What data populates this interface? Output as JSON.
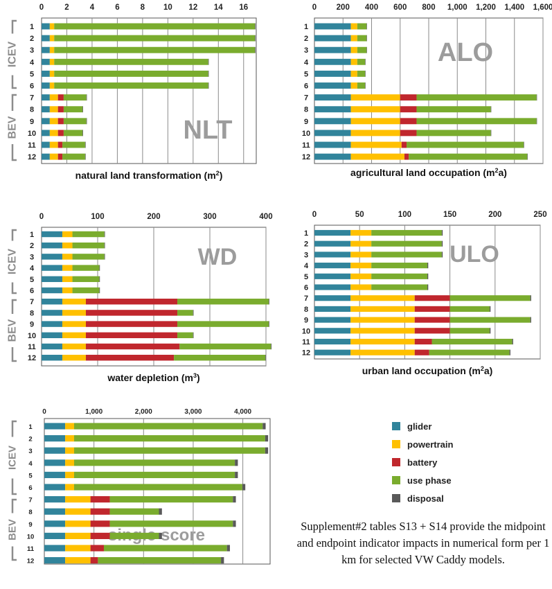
{
  "colors": {
    "glider": "#31849b",
    "powertrain": "#ffc000",
    "battery": "#c0272d",
    "use_phase": "#7aac2e",
    "disposal": "#595959",
    "watermark": "#9c9c9c",
    "bracket": "#8c8c8c"
  },
  "legend": {
    "items": [
      {
        "key": "glider",
        "label": "glider"
      },
      {
        "key": "powertrain",
        "label": "powertrain"
      },
      {
        "key": "battery",
        "label": "battery"
      },
      {
        "key": "use_phase",
        "label": "use phase"
      },
      {
        "key": "disposal",
        "label": "disposal"
      }
    ]
  },
  "caption": "Supplement#2 tables S13 + S14 provide the midpoint and endpoint indicator impacts in numerical form per 1 km for selected VW Caddy models.",
  "group_labels": {
    "icev": "ICEV",
    "bev": "BEV"
  },
  "chart_data": [
    {
      "id": "nlt",
      "type": "bar",
      "orientation": "horizontal",
      "stacked": true,
      "title": "NLT",
      "xlabel": "natural land transformation (m²)",
      "xlim": [
        0,
        17
      ],
      "ticks": [
        0,
        2,
        4,
        6,
        8,
        10,
        12,
        14,
        16
      ],
      "tick_labels": [
        "0",
        "2",
        "4",
        "6",
        "8",
        "10",
        "12",
        "14",
        "16"
      ],
      "categories": [
        "1",
        "2",
        "3",
        "4",
        "5",
        "6",
        "7",
        "8",
        "9",
        "10",
        "11",
        "12"
      ],
      "series": [
        {
          "name": "glider",
          "values": [
            0.65,
            0.65,
            0.65,
            0.65,
            0.65,
            0.65,
            0.65,
            0.65,
            0.65,
            0.65,
            0.65,
            0.65
          ]
        },
        {
          "name": "powertrain",
          "values": [
            0.35,
            0.35,
            0.35,
            0.35,
            0.35,
            0.35,
            0.65,
            0.65,
            0.65,
            0.65,
            0.65,
            0.65
          ]
        },
        {
          "name": "battery",
          "values": [
            0,
            0,
            0,
            0,
            0,
            0,
            0.45,
            0.45,
            0.45,
            0.45,
            0.35,
            0.35
          ]
        },
        {
          "name": "use_phase",
          "values": [
            15.9,
            15.9,
            15.9,
            12.2,
            12.2,
            12.2,
            1.8,
            1.5,
            1.8,
            1.5,
            1.8,
            1.8
          ]
        },
        {
          "name": "disposal",
          "values": [
            0.04,
            0.04,
            0.04,
            0.04,
            0.04,
            0.04,
            0.04,
            0.04,
            0.04,
            0.04,
            0.04,
            0.04
          ]
        }
      ]
    },
    {
      "id": "alo",
      "type": "bar",
      "orientation": "horizontal",
      "stacked": true,
      "title": "ALO",
      "xlabel": "agricultural land occupation (m²a)",
      "xlim": [
        0,
        1600
      ],
      "ticks": [
        0,
        200,
        400,
        600,
        800,
        1000,
        1200,
        1400,
        1600
      ],
      "tick_labels": [
        "0",
        "200",
        "400",
        "600",
        "800",
        "1,000",
        "1,200",
        "1,400",
        "1,600"
      ],
      "categories": [
        "1",
        "2",
        "3",
        "4",
        "5",
        "6",
        "7",
        "8",
        "9",
        "10",
        "11",
        "12"
      ],
      "series": [
        {
          "name": "glider",
          "values": [
            255,
            255,
            255,
            255,
            255,
            255,
            255,
            255,
            255,
            255,
            255,
            255
          ]
        },
        {
          "name": "powertrain",
          "values": [
            45,
            45,
            45,
            45,
            45,
            45,
            345,
            345,
            345,
            345,
            355,
            375
          ]
        },
        {
          "name": "battery",
          "values": [
            0,
            0,
            0,
            0,
            0,
            0,
            115,
            115,
            115,
            115,
            35,
            30
          ]
        },
        {
          "name": "use_phase",
          "values": [
            65,
            65,
            65,
            55,
            55,
            55,
            840,
            520,
            840,
            520,
            820,
            830
          ]
        },
        {
          "name": "disposal",
          "values": [
            3,
            3,
            3,
            3,
            3,
            3,
            3,
            3,
            3,
            3,
            3,
            3
          ]
        }
      ]
    },
    {
      "id": "wd",
      "type": "bar",
      "orientation": "horizontal",
      "stacked": true,
      "title": "WD",
      "xlabel": "water depletion (m³)",
      "xlim": [
        0,
        400
      ],
      "ticks": [
        0,
        100,
        200,
        300,
        400
      ],
      "tick_labels": [
        "0",
        "100",
        "200",
        "300",
        "400"
      ],
      "categories": [
        "1",
        "2",
        "3",
        "4",
        "5",
        "6",
        "7",
        "8",
        "9",
        "10",
        "11",
        "12"
      ],
      "series": [
        {
          "name": "glider",
          "values": [
            37,
            37,
            37,
            37,
            37,
            37,
            37,
            37,
            37,
            37,
            37,
            37
          ]
        },
        {
          "name": "powertrain",
          "values": [
            18,
            18,
            18,
            18,
            18,
            18,
            42,
            42,
            42,
            42,
            42,
            42
          ]
        },
        {
          "name": "battery",
          "values": [
            0,
            0,
            0,
            0,
            0,
            0,
            163,
            163,
            163,
            163,
            167,
            157
          ]
        },
        {
          "name": "use_phase",
          "values": [
            57,
            57,
            57,
            48,
            48,
            48,
            163,
            28,
            163,
            28,
            163,
            163
          ]
        },
        {
          "name": "disposal",
          "values": [
            1,
            1,
            1,
            1,
            1,
            1,
            1,
            1,
            1,
            1,
            1,
            1
          ]
        }
      ]
    },
    {
      "id": "ulo",
      "type": "bar",
      "orientation": "horizontal",
      "stacked": true,
      "title": "ULO",
      "xlabel": "urban land occupation (m²a)",
      "xlim": [
        0,
        250
      ],
      "ticks": [
        0,
        50,
        100,
        150,
        200,
        250
      ],
      "tick_labels": [
        "0",
        "50",
        "100",
        "150",
        "200",
        "250"
      ],
      "categories": [
        "1",
        "2",
        "3",
        "4",
        "5",
        "6",
        "7",
        "8",
        "9",
        "10",
        "11",
        "12"
      ],
      "series": [
        {
          "name": "glider",
          "values": [
            40,
            40,
            40,
            40,
            40,
            40,
            40,
            40,
            40,
            40,
            40,
            40
          ]
        },
        {
          "name": "powertrain",
          "values": [
            23,
            23,
            23,
            23,
            23,
            23,
            71,
            71,
            71,
            71,
            71,
            71
          ]
        },
        {
          "name": "battery",
          "values": [
            0,
            0,
            0,
            0,
            0,
            0,
            39,
            39,
            39,
            39,
            19,
            16
          ]
        },
        {
          "name": "use_phase",
          "values": [
            78,
            78,
            78,
            62,
            62,
            62,
            89,
            44,
            89,
            44,
            89,
            89
          ]
        },
        {
          "name": "disposal",
          "values": [
            1,
            1,
            1,
            1,
            1,
            1,
            1,
            1,
            1,
            1,
            1,
            1
          ]
        }
      ]
    },
    {
      "id": "single_score",
      "type": "bar",
      "orientation": "horizontal",
      "stacked": true,
      "title": "single score",
      "xlabel": "",
      "xlim": [
        0,
        4550
      ],
      "ticks": [
        0,
        1000,
        2000,
        3000,
        4000
      ],
      "tick_labels": [
        "0",
        "1,000",
        "2,000",
        "3,000",
        "4,000"
      ],
      "categories": [
        "1",
        "2",
        "3",
        "4",
        "5",
        "6",
        "7",
        "8",
        "9",
        "10",
        "11",
        "12"
      ],
      "series": [
        {
          "name": "glider",
          "values": [
            420,
            420,
            420,
            420,
            420,
            420,
            420,
            420,
            420,
            420,
            420,
            420
          ]
        },
        {
          "name": "powertrain",
          "values": [
            180,
            180,
            180,
            180,
            180,
            180,
            510,
            510,
            510,
            510,
            510,
            510
          ]
        },
        {
          "name": "battery",
          "values": [
            0,
            0,
            0,
            0,
            0,
            0,
            390,
            390,
            390,
            390,
            270,
            150
          ]
        },
        {
          "name": "use_phase",
          "values": [
            3800,
            3850,
            3850,
            3240,
            3240,
            3390,
            2480,
            990,
            2480,
            990,
            2480,
            2480
          ]
        },
        {
          "name": "disposal",
          "values": [
            60,
            60,
            60,
            60,
            60,
            60,
            60,
            60,
            60,
            60,
            60,
            60
          ]
        }
      ]
    }
  ]
}
